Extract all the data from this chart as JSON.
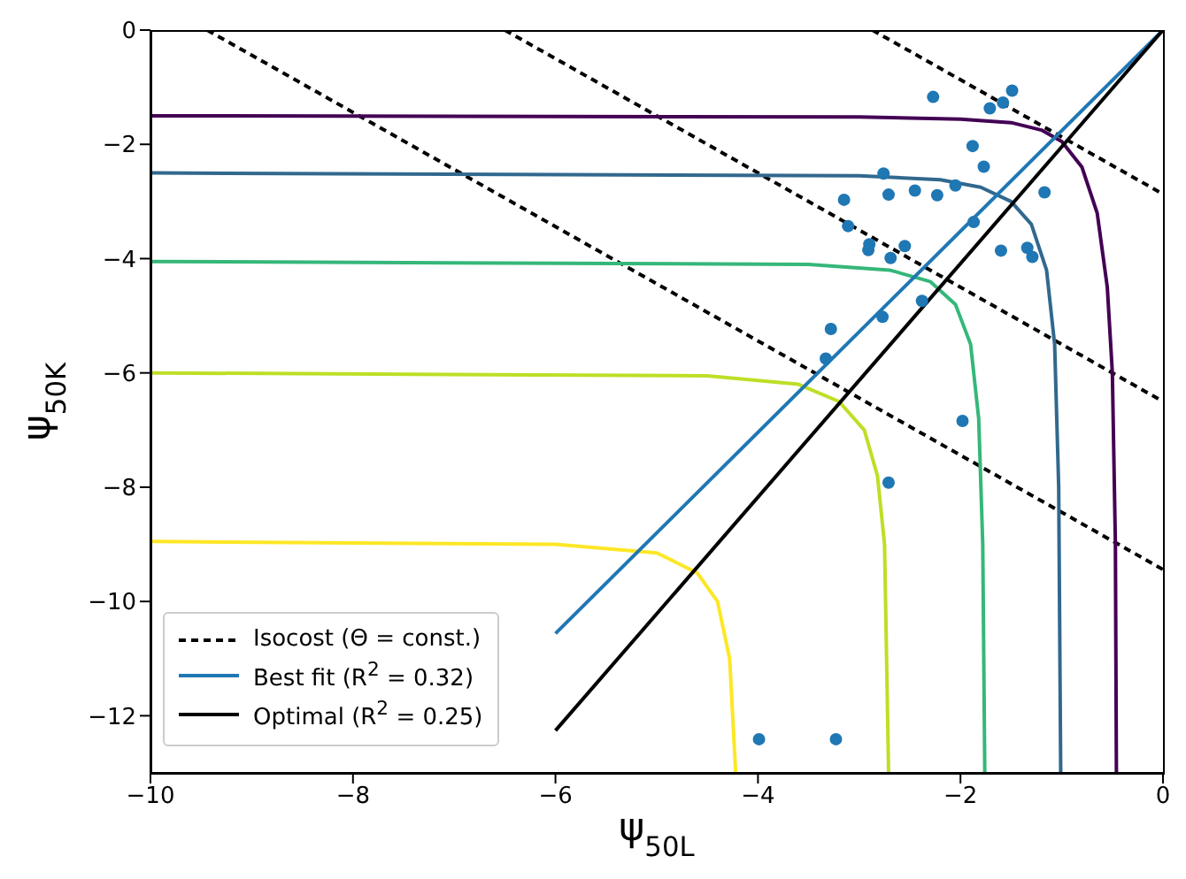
{
  "chart_data": {
    "type": "line",
    "xlabel": "ψ$_{50L}$",
    "ylabel": "ψ$_{50K}$",
    "xlim": [
      -10,
      0
    ],
    "ylim": [
      -13,
      0
    ],
    "xticks": [
      {
        "value": -10,
        "label": "−10"
      },
      {
        "value": -8,
        "label": "−8"
      },
      {
        "value": -6,
        "label": "−6"
      },
      {
        "value": -4,
        "label": "−4"
      },
      {
        "value": -2,
        "label": "−2"
      },
      0
    ],
    "yticks": [
      {
        "value": -12,
        "label": "−12"
      },
      {
        "value": -10,
        "label": "−10"
      },
      {
        "value": -8,
        "label": "−8"
      },
      {
        "value": -6,
        "label": "−6"
      },
      {
        "value": -4,
        "label": "−4"
      },
      {
        "value": -2,
        "label": "−2"
      },
      0
    ],
    "grid": false,
    "legend": "bottom left",
    "marker": "none",
    "series": [
      {
        "name": "Isocost (Θ =  const.)",
        "line_style": "dashed",
        "color": "#000000",
        "x": [
          -9.44,
          0
        ],
        "values": [
          0,
          -9.44
        ]
      },
      {
        "line_style": "dashed",
        "color": "#000000",
        "x": [
          -6.5,
          0
        ],
        "values": [
          0,
          -6.5
        ]
      },
      {
        "line_style": "dashed",
        "color": "#000000",
        "x": [
          -2.87,
          0
        ],
        "values": [
          0,
          -2.87
        ]
      },
      {
        "type": "line",
        "color": "#440154",
        "x": [
          -10,
          -3,
          -2,
          -1.5,
          -1.2,
          -1,
          -0.8,
          -0.65,
          -0.55,
          -0.5,
          -0.47,
          -0.46
        ],
        "values": [
          -1.5,
          -1.52,
          -1.56,
          -1.62,
          -1.75,
          -1.95,
          -2.4,
          -3.2,
          -4.5,
          -6,
          -9,
          -13
        ]
      },
      {
        "type": "line",
        "color": "#31688e",
        "x": [
          -10,
          -3,
          -2.2,
          -1.8,
          -1.5,
          -1.3,
          -1.15,
          -1.07,
          -1.03,
          -1.01
        ],
        "values": [
          -2.5,
          -2.55,
          -2.62,
          -2.75,
          -3,
          -3.4,
          -4.2,
          -5.5,
          -8,
          -13
        ]
      },
      {
        "type": "line",
        "color": "#35b779",
        "x": [
          -10,
          -3.5,
          -2.7,
          -2.3,
          -2.05,
          -1.9,
          -1.82,
          -1.78,
          -1.76
        ],
        "values": [
          -4.05,
          -4.1,
          -4.2,
          -4.4,
          -4.8,
          -5.5,
          -6.8,
          -9,
          -13
        ]
      },
      {
        "type": "line",
        "color": "#bddf26",
        "x": [
          -10,
          -4.5,
          -3.6,
          -3.2,
          -2.95,
          -2.82,
          -2.75,
          -2.71
        ],
        "values": [
          -6,
          -6.05,
          -6.2,
          -6.5,
          -7,
          -7.8,
          -9,
          -13
        ]
      },
      {
        "type": "line",
        "color": "#fde725",
        "x": [
          -10,
          -6,
          -5,
          -4.6,
          -4.4,
          -4.28,
          -4.22
        ],
        "values": [
          -8.95,
          -9,
          -9.15,
          -9.5,
          -10,
          -11,
          -13
        ]
      },
      {
        "name": "Best fit (R$^{2}$ = 0.32)",
        "type": "line",
        "color": "#1f77b4",
        "x": [
          -6,
          0
        ],
        "values": [
          -10.56,
          0
        ]
      },
      {
        "name": "Optimal (R$^{2}$ = 0.25)",
        "type": "line",
        "color": "#000000",
        "x": [
          -6,
          0
        ],
        "values": [
          -12.26,
          0
        ]
      },
      {
        "type": "scatter",
        "marker": "circle",
        "color": "#1f77b4",
        "x": [
          -2.27,
          -1.49,
          -1.58,
          -1.71,
          -1.88,
          -1.77,
          -2.76,
          -3.15,
          -2.71,
          -2.45,
          -2.23,
          -2.05,
          -1.17,
          -3.11,
          -1.87,
          -2.9,
          -2.91,
          -2.55,
          -2.69,
          -1.6,
          -1.34,
          -1.29,
          -2.38,
          -2.77,
          -3.28,
          -3.33,
          -1.98,
          -2.71,
          -3.99,
          -3.23
        ],
        "values": [
          -1.17,
          -1.06,
          -1.27,
          -1.37,
          -2.03,
          -2.39,
          -2.51,
          -2.97,
          -2.88,
          -2.81,
          -2.89,
          -2.72,
          -2.84,
          -3.43,
          -3.36,
          -3.75,
          -3.85,
          -3.78,
          -3.99,
          -3.86,
          -3.81,
          -3.97,
          -4.74,
          -5.02,
          -5.23,
          -5.75,
          -6.84,
          -7.92,
          -12.41,
          -12.41
        ]
      }
    ]
  }
}
